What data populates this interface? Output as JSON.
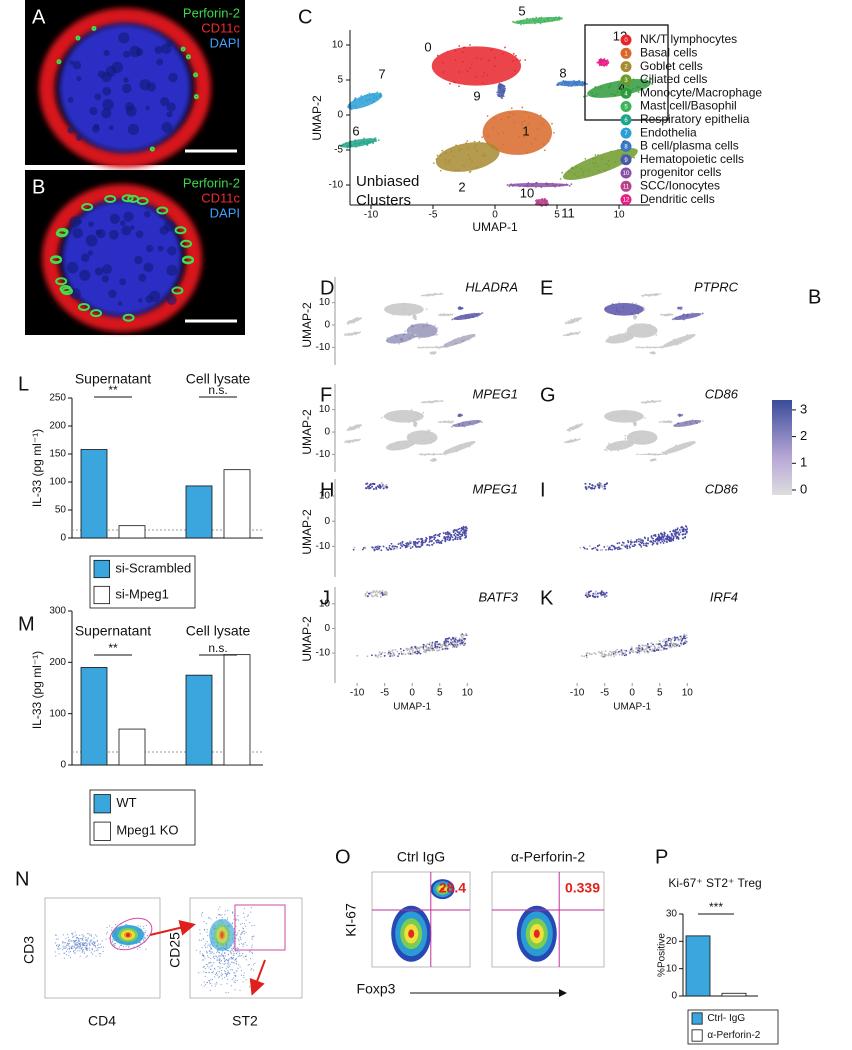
{
  "panels": {
    "A": {
      "label": "A",
      "stains": [
        "Perforin-2",
        "CD11c",
        "DAPI"
      ]
    },
    "B": {
      "label": "B",
      "stains": [
        "Perforin-2",
        "CD11c",
        "DAPI"
      ]
    },
    "C": {
      "label": "C",
      "xlabel": "UMAP-1",
      "ylabel": "UMAP-2",
      "xticks": [
        -10,
        -5,
        0,
        5,
        10
      ],
      "yticks": [
        10,
        5,
        0,
        -5,
        -10
      ],
      "note": [
        "Unbiased",
        "Clusters"
      ],
      "clusters": [
        {
          "id": "0",
          "name": "NK/T lymphocytes",
          "color": "#e8232b"
        },
        {
          "id": "1",
          "name": "Basal cells",
          "color": "#d8692a"
        },
        {
          "id": "2",
          "name": "Goblet cells",
          "color": "#a88a30"
        },
        {
          "id": "3",
          "name": "Ciliated cells",
          "color": "#6e9a2c"
        },
        {
          "id": "4",
          "name": "Monocyte/Macrophage",
          "color": "#2f9a3b"
        },
        {
          "id": "5",
          "name": "Mast cell/Basophil",
          "color": "#3db35a"
        },
        {
          "id": "6",
          "name": "Respiratory epithelia",
          "color": "#1fa58a"
        },
        {
          "id": "7",
          "name": "Endothelia",
          "color": "#2aa0d6"
        },
        {
          "id": "8",
          "name": "B cell/plasma cells",
          "color": "#3a77c6"
        },
        {
          "id": "9",
          "name": "Hematopoietic cells",
          "color": "#4a5aa8"
        },
        {
          "id": "10",
          "name": "progenitor cells",
          "color": "#8b4ea5"
        },
        {
          "id": "11",
          "name": "SCC/Ionocytes",
          "color": "#b8428c"
        },
        {
          "id": "12",
          "name": "Dendritic cells",
          "color": "#e61d87"
        }
      ]
    },
    "features": {
      "xlabel": "UMAP-1",
      "ylabel": "UMAP-2",
      "xticks": [
        -10,
        -5,
        0,
        5,
        10
      ],
      "yticks": [
        10,
        0,
        -10
      ],
      "items": [
        {
          "label": "D",
          "gene": "HLADRA"
        },
        {
          "label": "E",
          "gene": "PTPRC"
        },
        {
          "label": "F",
          "gene": "MPEG1"
        },
        {
          "label": "G",
          "gene": "CD86"
        },
        {
          "label": "H",
          "gene": "MPEG1"
        },
        {
          "label": "I",
          "gene": "CD86"
        },
        {
          "label": "J",
          "gene": "BATF3"
        },
        {
          "label": "K",
          "gene": "IRF4"
        }
      ],
      "colorbar": [
        3,
        2,
        1,
        0
      ]
    },
    "side_label": "B",
    "N": {
      "label": "N",
      "axes": [
        "CD3",
        "CD4",
        "CD25",
        "ST2"
      ]
    },
    "O": {
      "label": "O",
      "titles": [
        "Ctrl IgG",
        "α-Perforin-2"
      ],
      "percents": [
        28.4,
        0.339
      ],
      "ylabel": "KI-67",
      "xlabel": "Foxp3"
    }
  },
  "chart_data": [
    {
      "type": "bar",
      "label": "L",
      "ylabel": "IL-33 (pg ml⁻¹)",
      "categories": [
        "Supernatant",
        "Cell lysate"
      ],
      "series": [
        {
          "name": "si-Scrambled",
          "color": "#3aa6dd",
          "values": [
            158,
            93
          ]
        },
        {
          "name": "si-Mpeg1",
          "color": "#ffffff",
          "values": [
            22,
            122
          ]
        }
      ],
      "ylim": [
        0,
        250
      ],
      "yticks": [
        0,
        50,
        100,
        150,
        200,
        250
      ],
      "annotations": [
        "**",
        "n.s."
      ]
    },
    {
      "type": "bar",
      "label": "M",
      "ylabel": "IL-33 (pg ml⁻¹)",
      "categories": [
        "Supernatant",
        "Cell lysate"
      ],
      "series": [
        {
          "name": "WT",
          "color": "#3aa6dd",
          "values": [
            190,
            175
          ]
        },
        {
          "name": "Mpeg1 KO",
          "color": "#ffffff",
          "values": [
            70,
            215
          ]
        }
      ],
      "ylim": [
        0,
        300
      ],
      "yticks": [
        0,
        100,
        200,
        300
      ],
      "annotations": [
        "**",
        "n.s."
      ]
    },
    {
      "type": "bar",
      "label": "P",
      "title": "Ki-67⁺ ST2⁺ Treg",
      "ylabel": "%Positive",
      "categories": [
        null
      ],
      "series": [
        {
          "name": "Ctrl- IgG",
          "color": "#3aa6dd",
          "values": [
            22
          ]
        },
        {
          "name": "α-Perforin-2",
          "color": "#ffffff",
          "values": [
            1
          ]
        }
      ],
      "ylim": [
        0,
        30
      ],
      "yticks": [
        0,
        10,
        20,
        30
      ],
      "annotations": [
        "***"
      ]
    }
  ]
}
